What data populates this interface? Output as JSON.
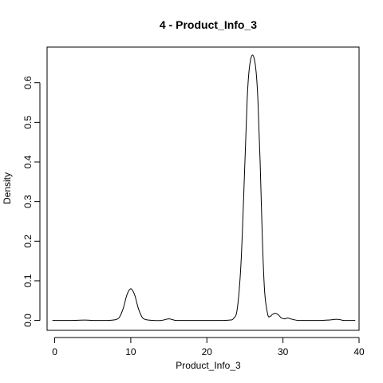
{
  "chart_data": {
    "type": "line",
    "title": "4 - Product_Info_3",
    "xlabel": "Product_Info_3",
    "ylabel": "Density",
    "xlim": [
      -1,
      40
    ],
    "ylim": [
      -0.025,
      0.69
    ],
    "xticks": [
      0,
      10,
      20,
      30,
      40
    ],
    "yticks": [
      0.0,
      0.1,
      0.2,
      0.3,
      0.4,
      0.5,
      0.6
    ],
    "ytick_labels": [
      "0.0",
      "0.1",
      "0.2",
      "0.3",
      "0.4",
      "0.5",
      "0.6"
    ],
    "grid": false,
    "series": [
      {
        "color": "#000000",
        "x": [
          -0.3,
          2,
          4,
          5,
          6,
          7,
          8,
          8.5,
          9,
          9.5,
          10,
          10.5,
          11,
          11.5,
          12,
          13,
          14,
          14.5,
          15,
          15.5,
          16,
          18,
          20,
          22,
          23,
          23.5,
          24,
          24.5,
          25,
          25.3,
          25.6,
          26,
          26.4,
          26.7,
          27,
          27.3,
          27.6,
          28,
          28.3,
          28.6,
          29,
          29.4,
          29.8,
          30.2,
          30.6,
          31,
          31.4,
          32,
          33,
          35,
          36,
          36.5,
          37,
          37.5,
          38,
          39.5
        ],
        "y": [
          0.0,
          0.0,
          0.001,
          0.0,
          0.0,
          0.0,
          0.002,
          0.008,
          0.03,
          0.065,
          0.08,
          0.065,
          0.03,
          0.008,
          0.002,
          0.0,
          0.0,
          0.002,
          0.004,
          0.002,
          0.0,
          0.0,
          0.0,
          0.0,
          0.001,
          0.005,
          0.03,
          0.15,
          0.4,
          0.56,
          0.64,
          0.67,
          0.64,
          0.56,
          0.4,
          0.2,
          0.07,
          0.015,
          0.01,
          0.015,
          0.018,
          0.014,
          0.006,
          0.004,
          0.006,
          0.004,
          0.002,
          0.0,
          0.0,
          0.0,
          0.001,
          0.002,
          0.003,
          0.002,
          0.0,
          0.0
        ]
      }
    ]
  }
}
